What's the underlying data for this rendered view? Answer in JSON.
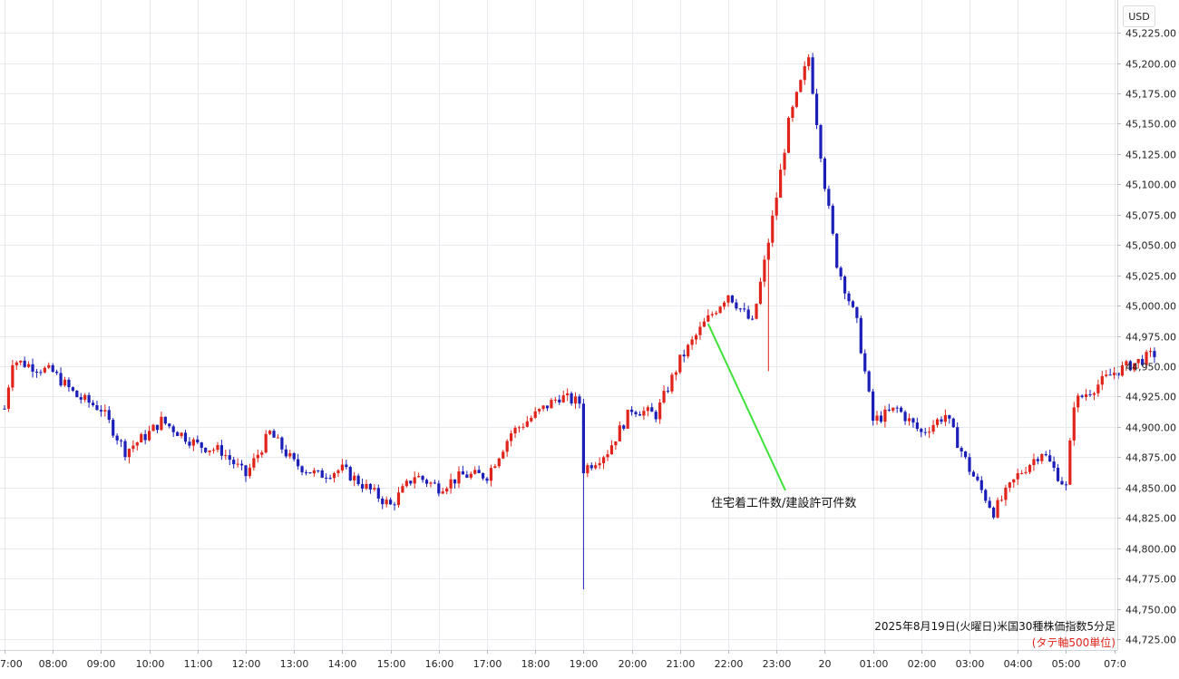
{
  "chart_data": {
    "type": "candlestick",
    "currency": "USD",
    "caption": "2025年8月19日(火曜日)米国30種株価指数5分足",
    "caption_sub": "(タテ軸500単位)",
    "annotation": "住宅着工件数/建設許可件数",
    "y_ticks": [
      "45,225.00",
      "45,200.00",
      "45,175.00",
      "45,150.00",
      "45,125.00",
      "45,100.00",
      "45,075.00",
      "45,050.00",
      "45,025.00",
      "45,000.00",
      "44,975.00",
      "44,950.00",
      "44,925.00",
      "44,900.00",
      "44,875.00",
      "44,850.00",
      "44,825.00",
      "44,800.00",
      "44,775.00",
      "44,750.00",
      "44,725.00"
    ],
    "ylim": [
      44716,
      45252
    ],
    "x_ticks": [
      "7:00",
      "08:00",
      "09:00",
      "10:00",
      "11:00",
      "12:00",
      "13:00",
      "14:00",
      "15:00",
      "16:00",
      "17:00",
      "18:00",
      "19:00",
      "20:00",
      "21:00",
      "22:00",
      "23:00",
      "20",
      "01:00",
      "02:00",
      "03:00",
      "04:00",
      "05:00",
      "07:0"
    ],
    "anchor_prices": [
      {
        "time": "07:00",
        "price": 44915
      },
      {
        "time": "07:10",
        "price": 44955
      },
      {
        "time": "08:00",
        "price": 44945
      },
      {
        "time": "08:30",
        "price": 44925
      },
      {
        "time": "09:00",
        "price": 44915
      },
      {
        "time": "09:30",
        "price": 44880
      },
      {
        "time": "10:00",
        "price": 44895
      },
      {
        "time": "10:15",
        "price": 44905
      },
      {
        "time": "11:00",
        "price": 44885
      },
      {
        "time": "11:30",
        "price": 44880
      },
      {
        "time": "12:00",
        "price": 44860
      },
      {
        "time": "12:30",
        "price": 44895
      },
      {
        "time": "13:00",
        "price": 44870
      },
      {
        "time": "13:30",
        "price": 44860
      },
      {
        "time": "14:00",
        "price": 44865
      },
      {
        "time": "14:30",
        "price": 44850
      },
      {
        "time": "15:00",
        "price": 44835
      },
      {
        "time": "15:30",
        "price": 44860
      },
      {
        "time": "16:00",
        "price": 44850
      },
      {
        "time": "16:30",
        "price": 44860
      },
      {
        "time": "17:00",
        "price": 44860
      },
      {
        "time": "17:30",
        "price": 44895
      },
      {
        "time": "18:00",
        "price": 44910
      },
      {
        "time": "18:30",
        "price": 44925
      },
      {
        "time": "18:55",
        "price": 44920
      },
      {
        "time": "19:00",
        "price": 44865
      },
      {
        "time": "19:30",
        "price": 44880
      },
      {
        "time": "20:00",
        "price": 44915
      },
      {
        "time": "20:30",
        "price": 44910
      },
      {
        "time": "21:00",
        "price": 44955
      },
      {
        "time": "21:30",
        "price": 44985
      },
      {
        "time": "22:00",
        "price": 45010
      },
      {
        "time": "22:30",
        "price": 44985
      },
      {
        "time": "22:45",
        "price": 45035
      },
      {
        "time": "23:00",
        "price": 45090
      },
      {
        "time": "23:15",
        "price": 45150
      },
      {
        "time": "23:40",
        "price": 45205
      },
      {
        "time": "00:00",
        "price": 45100
      },
      {
        "time": "00:15",
        "price": 45035
      },
      {
        "time": "00:40",
        "price": 44985
      },
      {
        "time": "01:00",
        "price": 44905
      },
      {
        "time": "01:30",
        "price": 44915
      },
      {
        "time": "02:00",
        "price": 44895
      },
      {
        "time": "02:30",
        "price": 44910
      },
      {
        "time": "03:00",
        "price": 44865
      },
      {
        "time": "03:30",
        "price": 44830
      },
      {
        "time": "04:00",
        "price": 44860
      },
      {
        "time": "04:30",
        "price": 44880
      },
      {
        "time": "05:00",
        "price": 44850
      },
      {
        "time": "05:10",
        "price": 44920
      },
      {
        "time": "06:00",
        "price": 44945
      },
      {
        "time": "06:50",
        "price": 44960
      }
    ],
    "colors": {
      "up": "#e0241b",
      "down": "#1b1fb8",
      "annotation_line": "#3ee23a",
      "grid": "#e6eaee"
    },
    "grid": true
  }
}
